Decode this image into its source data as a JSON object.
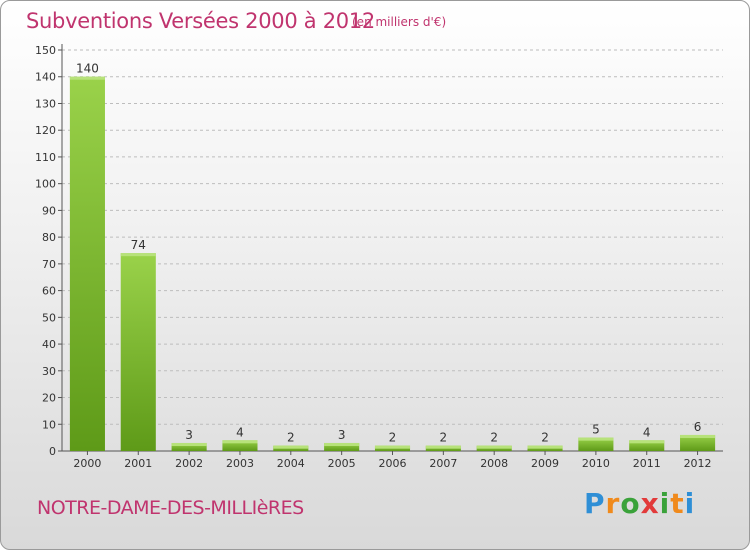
{
  "title": "Subventions Versées 2000 à 2012",
  "subtitle": "(en milliers d'€)",
  "commune": "NOTRE-DAME-DES-MILLIèRES",
  "logo": {
    "p": "P",
    "r": "r",
    "o": "o",
    "x": "x",
    "i1": "i",
    "t": "t",
    "i2": "i"
  },
  "colors": {
    "bar_top": "#9ad24a",
    "bar_bottom": "#5e9a18",
    "title": "#c0346e"
  },
  "chart_data": {
    "type": "bar",
    "title": "Subventions Versées 2000 à 2012",
    "subtitle": "(en milliers d'€)",
    "categories": [
      "2000",
      "2001",
      "2002",
      "2003",
      "2004",
      "2005",
      "2006",
      "2007",
      "2008",
      "2009",
      "2010",
      "2011",
      "2012"
    ],
    "values": [
      140,
      74,
      3,
      4,
      2,
      3,
      2,
      2,
      2,
      2,
      5,
      4,
      6
    ],
    "ylim": [
      0,
      150
    ],
    "yticks": [
      0,
      10,
      20,
      30,
      40,
      50,
      60,
      70,
      80,
      90,
      100,
      110,
      120,
      130,
      140,
      150
    ],
    "grid": true,
    "xlabel": "",
    "ylabel": ""
  }
}
